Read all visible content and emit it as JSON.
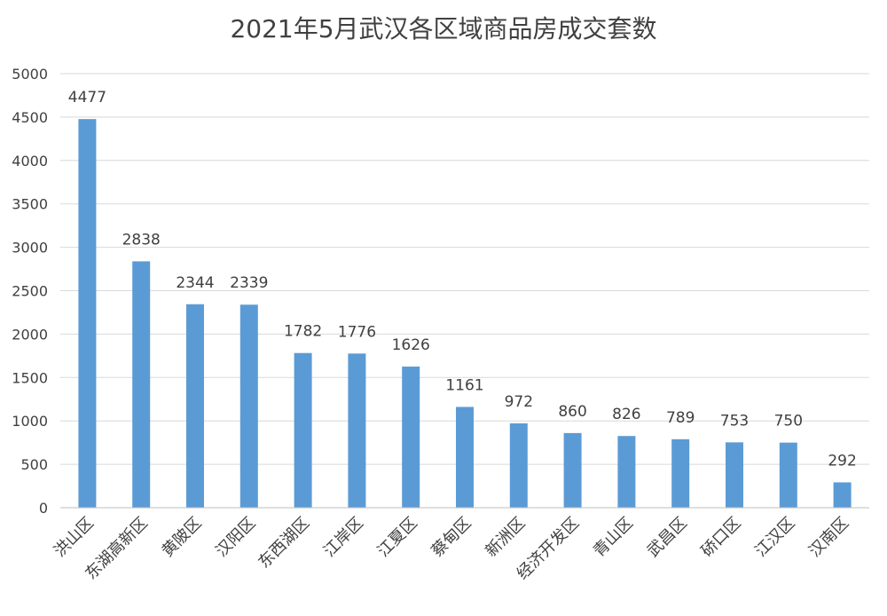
{
  "chart_data": {
    "type": "bar",
    "title": "2021年5月武汉各区域商品房成交套数",
    "categories": [
      "洪山区",
      "东湖高新区",
      "黄陂区",
      "汉阳区",
      "东西湖区",
      "江岸区",
      "江夏区",
      "蔡甸区",
      "新洲区",
      "经济开发区",
      "青山区",
      "武昌区",
      "硚口区",
      "江汉区",
      "汉南区"
    ],
    "values": [
      4477,
      2838,
      2344,
      2339,
      1782,
      1776,
      1626,
      1161,
      972,
      860,
      826,
      789,
      753,
      750,
      292
    ],
    "ylim": [
      0,
      5000
    ],
    "yticks": [
      0,
      500,
      1000,
      1500,
      2000,
      2500,
      3000,
      3500,
      4000,
      4500,
      5000
    ],
    "grid": true,
    "bar_color": "#5b9bd5",
    "data_labels": true
  }
}
